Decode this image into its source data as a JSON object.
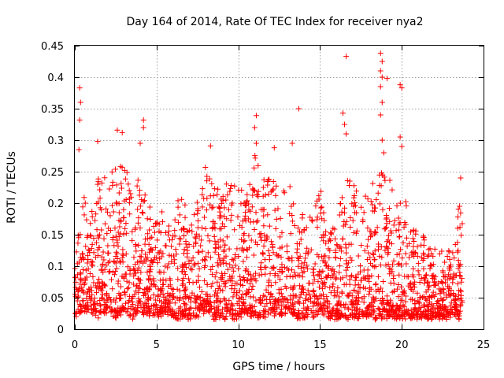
{
  "chart_data": {
    "type": "scatter",
    "title": "Day 164 of 2014, Rate Of TEC Index for receiver nya2",
    "xlabel": "GPS time / hours",
    "ylabel": "ROTI / TECUs",
    "xlim": [
      0,
      25
    ],
    "ylim": [
      0,
      0.45
    ],
    "x_ticks": [
      0,
      5,
      10,
      15,
      20,
      25
    ],
    "x_tick_labels": [
      "0",
      "5",
      "10",
      "15",
      "20",
      "25"
    ],
    "y_ticks": [
      0,
      0.05,
      0.1,
      0.15,
      0.2,
      0.25,
      0.3,
      0.35,
      0.4,
      0.45
    ],
    "y_tick_labels": [
      "0",
      "0.05",
      "0.1",
      "0.15",
      "0.2",
      "0.25",
      "0.3",
      "0.35",
      "0.4",
      "0.45"
    ],
    "grid": true,
    "marker": "+",
    "series_color": "#ff0000",
    "series": [
      {
        "name": "ROTI",
        "peaks": [
          {
            "x": 0.3,
            "y": 0.383
          },
          {
            "x": 0.35,
            "y": 0.36
          },
          {
            "x": 0.3,
            "y": 0.332
          },
          {
            "x": 0.25,
            "y": 0.285
          },
          {
            "x": 1.4,
            "y": 0.298
          },
          {
            "x": 2.6,
            "y": 0.316
          },
          {
            "x": 2.9,
            "y": 0.312
          },
          {
            "x": 4.2,
            "y": 0.332
          },
          {
            "x": 4.2,
            "y": 0.32
          },
          {
            "x": 4.0,
            "y": 0.295
          },
          {
            "x": 8.3,
            "y": 0.291
          },
          {
            "x": 11.1,
            "y": 0.339
          },
          {
            "x": 11.0,
            "y": 0.32
          },
          {
            "x": 11.1,
            "y": 0.295
          },
          {
            "x": 12.2,
            "y": 0.288
          },
          {
            "x": 13.3,
            "y": 0.295
          },
          {
            "x": 13.7,
            "y": 0.35
          },
          {
            "x": 16.4,
            "y": 0.343
          },
          {
            "x": 16.5,
            "y": 0.325
          },
          {
            "x": 16.6,
            "y": 0.31
          },
          {
            "x": 16.6,
            "y": 0.433
          },
          {
            "x": 18.7,
            "y": 0.438
          },
          {
            "x": 18.8,
            "y": 0.425
          },
          {
            "x": 18.7,
            "y": 0.41
          },
          {
            "x": 18.8,
            "y": 0.4
          },
          {
            "x": 19.1,
            "y": 0.398
          },
          {
            "x": 18.7,
            "y": 0.385
          },
          {
            "x": 18.8,
            "y": 0.36
          },
          {
            "x": 18.7,
            "y": 0.34
          },
          {
            "x": 18.8,
            "y": 0.3
          },
          {
            "x": 18.9,
            "y": 0.28
          },
          {
            "x": 19.9,
            "y": 0.388
          },
          {
            "x": 20.0,
            "y": 0.383
          },
          {
            "x": 19.9,
            "y": 0.305
          },
          {
            "x": 20.0,
            "y": 0.29
          },
          {
            "x": 23.6,
            "y": 0.24
          }
        ],
        "envelope": {
          "x": [
            0,
            0.5,
            1,
            1.5,
            2,
            2.5,
            3,
            3.5,
            4,
            4.5,
            5,
            5.5,
            6,
            6.5,
            7,
            7.5,
            8,
            8.5,
            9,
            9.5,
            10,
            10.5,
            11,
            11.5,
            12,
            12.5,
            13,
            13.5,
            14,
            14.5,
            15,
            15.5,
            16,
            16.5,
            17,
            17.5,
            18,
            18.5,
            19,
            19.5,
            20,
            20.5,
            21,
            21.5,
            22,
            22.5,
            23,
            23.5,
            23.7
          ],
          "upper": [
            0.12,
            0.22,
            0.18,
            0.25,
            0.24,
            0.27,
            0.26,
            0.23,
            0.24,
            0.2,
            0.17,
            0.19,
            0.2,
            0.21,
            0.19,
            0.22,
            0.26,
            0.23,
            0.22,
            0.24,
            0.22,
            0.22,
            0.28,
            0.24,
            0.25,
            0.22,
            0.23,
            0.22,
            0.19,
            0.18,
            0.23,
            0.15,
            0.18,
            0.23,
            0.24,
            0.2,
            0.22,
            0.24,
            0.26,
            0.23,
            0.21,
            0.19,
            0.16,
            0.14,
            0.13,
            0.12,
            0.13,
            0.2,
            0.23
          ],
          "lower": [
            0.02,
            0.03,
            0.03,
            0.02,
            0.03,
            0.02,
            0.03,
            0.02,
            0.03,
            0.02,
            0.02,
            0.03,
            0.02,
            0.02,
            0.02,
            0.02,
            0.03,
            0.02,
            0.02,
            0.02,
            0.02,
            0.03,
            0.02,
            0.02,
            0.03,
            0.02,
            0.03,
            0.02,
            0.02,
            0.02,
            0.03,
            0.02,
            0.02,
            0.02,
            0.02,
            0.02,
            0.02,
            0.02,
            0.02,
            0.02,
            0.02,
            0.02,
            0.02,
            0.02,
            0.02,
            0.02,
            0.02,
            0.02,
            0.03
          ]
        }
      }
    ]
  }
}
